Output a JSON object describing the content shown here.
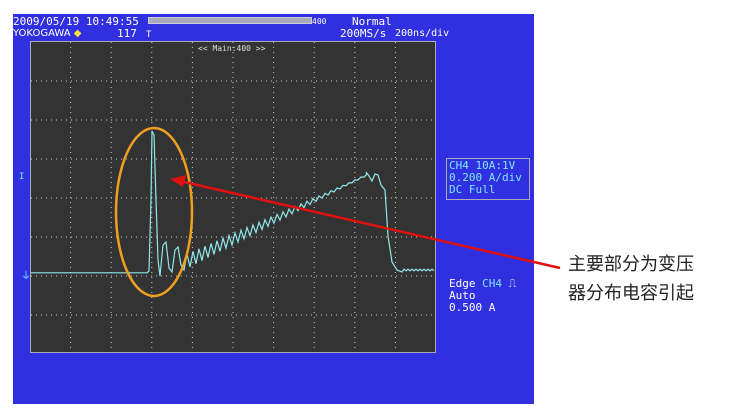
{
  "header": {
    "datetime": "2009/05/19 10:49:55",
    "brand": "YOKOGAWA",
    "count": "117",
    "record_length": "400",
    "trigger_mode": "Normal",
    "sample_rate": "200MS/s",
    "timebase": "200ns/div",
    "zoom_label": "<< Main:400 >>"
  },
  "channel": {
    "line1": "CH4 10A:1V",
    "line2": "0.200 A/div",
    "line3": "DC   Full"
  },
  "trigger": {
    "type": "Edge",
    "source": "CH4",
    "mode": "Auto",
    "level": "0.500 A"
  },
  "markers": {
    "ch_marker": "I",
    "ground_marker": "⏚",
    "trigger_marker": "T"
  },
  "annotation": {
    "line1": "主要部分为变压",
    "line2": "器分布电容引起"
  },
  "colors": {
    "panel": "#3030e0",
    "screen": "#333333",
    "trace": "#8fe8e8",
    "ellipse": "#f0a020",
    "arrow": "#e01010"
  }
}
